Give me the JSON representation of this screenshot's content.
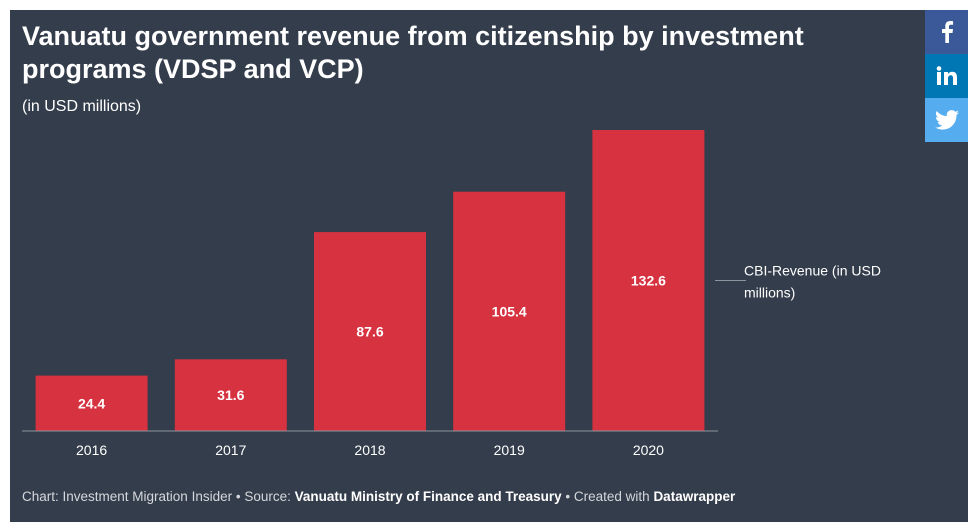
{
  "chart_data": {
    "type": "bar",
    "title": "Vanuatu government revenue from citizenship by investment programs (VDSP and VCP)",
    "subtitle": "(in USD millions)",
    "categories": [
      "2016",
      "2017",
      "2018",
      "2019",
      "2020"
    ],
    "series": [
      {
        "name": "CBI-Revenue (in USD millions)",
        "values": [
          24.4,
          31.6,
          87.6,
          105.4,
          132.6
        ]
      }
    ],
    "value_labels": [
      "24.4",
      "31.6",
      "87.6",
      "105.4",
      "132.6"
    ],
    "legend_lines": [
      "CBI-Revenue (in USD",
      "millions)"
    ],
    "xlabel": "",
    "ylabel": "",
    "ylim": [
      0,
      132.6
    ],
    "grid": false,
    "legend_position": "right",
    "bar_color": "#d7323f"
  },
  "footer": {
    "prefix": "Chart: Investment Migration Insider • Source: ",
    "source": "Vanuatu Ministry of Finance and Treasury",
    "mid": " • Created with ",
    "tool": "Datawrapper"
  },
  "share": [
    {
      "name": "facebook",
      "icon": "facebook-icon",
      "color": "#3b5998"
    },
    {
      "name": "linkedin",
      "icon": "linkedin-icon",
      "color": "#0077b5"
    },
    {
      "name": "twitter",
      "icon": "twitter-icon",
      "color": "#55acee"
    }
  ]
}
